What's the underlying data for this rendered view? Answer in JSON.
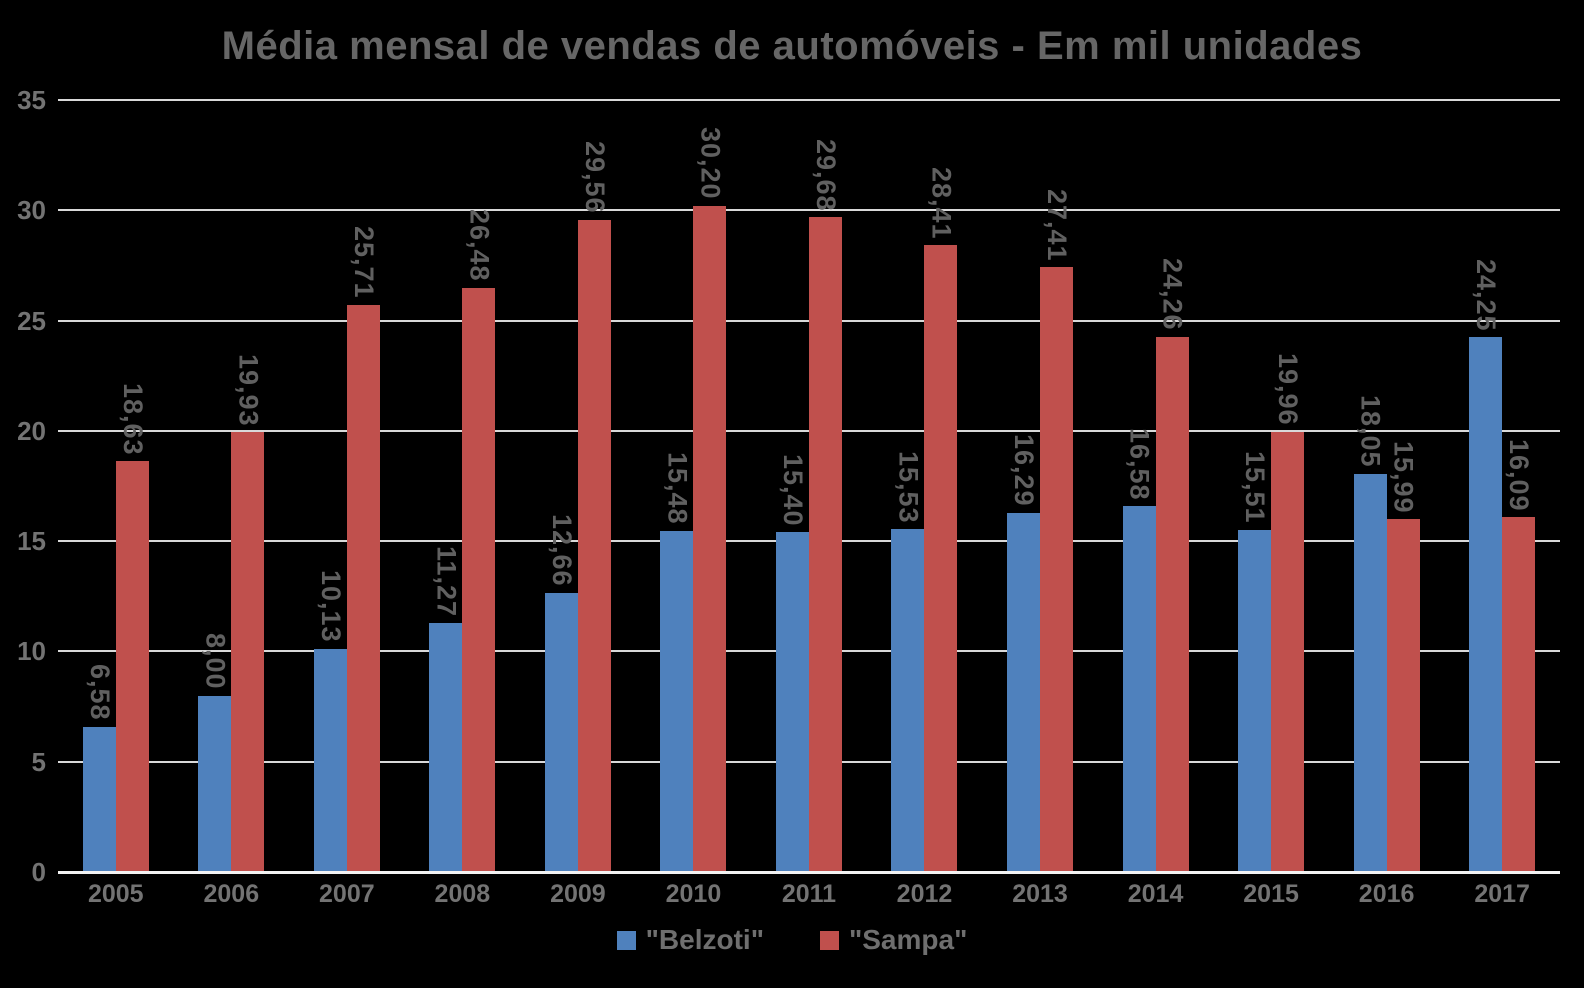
{
  "chart_data": {
    "type": "bar",
    "title": "Média mensal de vendas de automóveis - Em mil unidades",
    "categories": [
      "2005",
      "2006",
      "2007",
      "2008",
      "2009",
      "2010",
      "2011",
      "2012",
      "2013",
      "2014",
      "2015",
      "2016",
      "2017"
    ],
    "series": [
      {
        "key": "belzoti",
        "name": "\"Belzoti\"",
        "color": "#4F81BD",
        "values": [
          6.58,
          8.0,
          10.13,
          11.27,
          12.66,
          15.48,
          15.4,
          15.53,
          16.29,
          16.58,
          15.51,
          18.05,
          24.25
        ],
        "labels": [
          "6,58",
          "8,00",
          "10,13",
          "11,27",
          "12,66",
          "15,48",
          "15,40",
          "15,53",
          "16,29",
          "16,58",
          "15,51",
          "18,05",
          "24,25"
        ]
      },
      {
        "key": "sampa",
        "name": "\"Sampa\"",
        "color": "#C0504D",
        "values": [
          18.63,
          19.93,
          25.71,
          26.48,
          29.56,
          30.2,
          29.68,
          28.41,
          27.41,
          24.26,
          19.96,
          15.99,
          16.09
        ],
        "labels": [
          "18,63",
          "19,93",
          "25,71",
          "26,48",
          "29,56",
          "30,20",
          "29,68",
          "28,41",
          "27,41",
          "24,26",
          "19,96",
          "15,99",
          "16,09"
        ]
      }
    ],
    "xlabel": "",
    "ylabel": "",
    "ylim": [
      0,
      35
    ],
    "y_ticks": [
      0,
      5,
      10,
      15,
      20,
      25,
      30,
      35
    ],
    "grid": "horizontal",
    "legend_position": "bottom-center",
    "data_label_rotation": "90deg-clockwise",
    "colors": {
      "background": "#000000",
      "title_text": "#666666",
      "axis_text": "#737373",
      "data_label_text": "#606060",
      "legend_text": "#6f6f6f",
      "gridline": "#d9d9d9",
      "axis_line": "#f2f2f2"
    }
  }
}
